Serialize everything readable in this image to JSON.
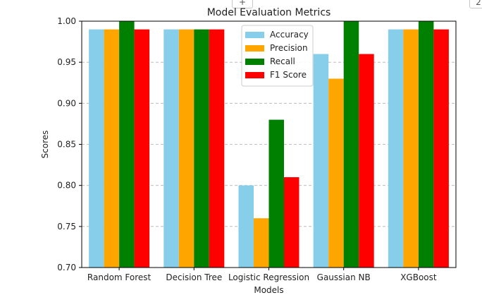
{
  "toolbar": {
    "add_label": "+",
    "corner_label": "2"
  },
  "chart_data": {
    "type": "bar",
    "title": "Model Evaluation Metrics",
    "xlabel": "Models",
    "ylabel": "Scores",
    "ylim": [
      0.7,
      1.0
    ],
    "yticks": [
      "0.70",
      "0.75",
      "0.80",
      "0.85",
      "0.90",
      "0.95",
      "1.00"
    ],
    "categories": [
      "Random Forest",
      "Decision Tree",
      "Logistic Regression",
      "Gaussian NB",
      "XGBoost"
    ],
    "series": [
      {
        "name": "Accuracy",
        "color": "#87CEEB",
        "values": [
          0.99,
          0.99,
          0.8,
          0.96,
          0.99
        ]
      },
      {
        "name": "Precision",
        "color": "#FFA500",
        "values": [
          0.99,
          0.99,
          0.76,
          0.93,
          0.99
        ]
      },
      {
        "name": "Recall",
        "color": "#008000",
        "values": [
          1.0,
          0.99,
          0.88,
          1.0,
          1.0
        ]
      },
      {
        "name": "F1 Score",
        "color": "#FF0000",
        "values": [
          0.99,
          0.99,
          0.81,
          0.96,
          0.99
        ]
      }
    ],
    "grid": "y-dashed",
    "legend_position": "top-center"
  }
}
